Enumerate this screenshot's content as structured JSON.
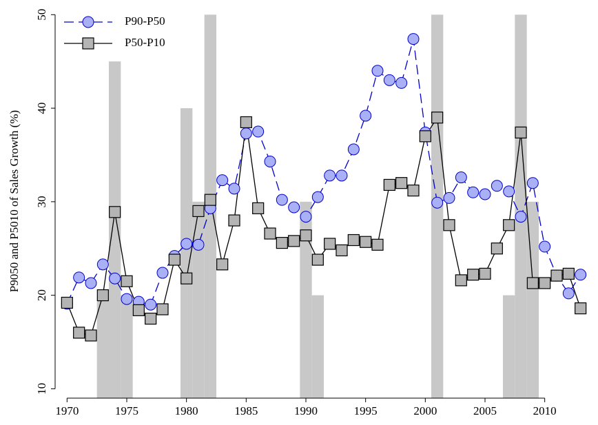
{
  "chart_data": {
    "type": "line",
    "y_label": "P9050 and P5010 of Sales Growth (%)",
    "x": [
      1970,
      1971,
      1972,
      1973,
      1974,
      1975,
      1976,
      1977,
      1978,
      1979,
      1980,
      1981,
      1982,
      1983,
      1984,
      1985,
      1986,
      1987,
      1988,
      1989,
      1990,
      1991,
      1992,
      1993,
      1994,
      1995,
      1996,
      1997,
      1998,
      1999,
      2000,
      2001,
      2002,
      2003,
      2004,
      2005,
      2006,
      2007,
      2008,
      2009,
      2010,
      2011,
      2012,
      2013
    ],
    "series": [
      {
        "name": "P90-P50",
        "color": "#0000cc",
        "marker_fill": "#aab0f5",
        "marker": "circle",
        "dash": true,
        "values": [
          19.1,
          21.9,
          21.3,
          23.3,
          21.8,
          19.6,
          19.3,
          19.0,
          22.4,
          24.2,
          25.5,
          25.4,
          29.3,
          32.3,
          31.4,
          37.3,
          37.5,
          34.3,
          30.2,
          29.4,
          28.4,
          30.5,
          32.8,
          32.8,
          35.6,
          39.2,
          44.0,
          43.0,
          42.7,
          47.4,
          37.4,
          29.9,
          30.4,
          32.6,
          31.0,
          30.8,
          31.7,
          31.1,
          28.4,
          32.0,
          25.2,
          22.1,
          20.2,
          22.2
        ]
      },
      {
        "name": "P50-P10",
        "color": "#000000",
        "marker_fill": "#b4b4b4",
        "marker": "square",
        "dash": false,
        "values": [
          19.2,
          16.0,
          15.7,
          20.0,
          28.9,
          21.5,
          18.4,
          17.5,
          18.5,
          23.8,
          21.8,
          29.0,
          30.2,
          23.3,
          28.0,
          38.5,
          29.3,
          26.6,
          25.6,
          25.8,
          26.4,
          23.8,
          25.5,
          24.8,
          25.9,
          25.7,
          25.4,
          31.8,
          32.0,
          31.2,
          37.0,
          39.0,
          27.5,
          21.6,
          22.2,
          22.3,
          25.0,
          27.5,
          37.4,
          21.3,
          21.3,
          22.1,
          22.3,
          18.6
        ]
      }
    ],
    "shading": {
      "color": "#c8c8c8",
      "x": [
        1973,
        1974,
        1975,
        1980,
        1981,
        1982,
        1990,
        1991,
        2001,
        2007,
        2008,
        2009
      ],
      "values": [
        20,
        45,
        20,
        40,
        30,
        50,
        30,
        20,
        50,
        20,
        50,
        30
      ]
    },
    "xlim": [
      1969,
      2014
    ],
    "ylim": [
      9,
      51.2
    ],
    "xticks": [
      1970,
      1975,
      1980,
      1985,
      1990,
      1995,
      2000,
      2005,
      2010
    ],
    "yticks": [
      10,
      20,
      30,
      40,
      50
    ],
    "legend": "upper left",
    "grid": false
  }
}
